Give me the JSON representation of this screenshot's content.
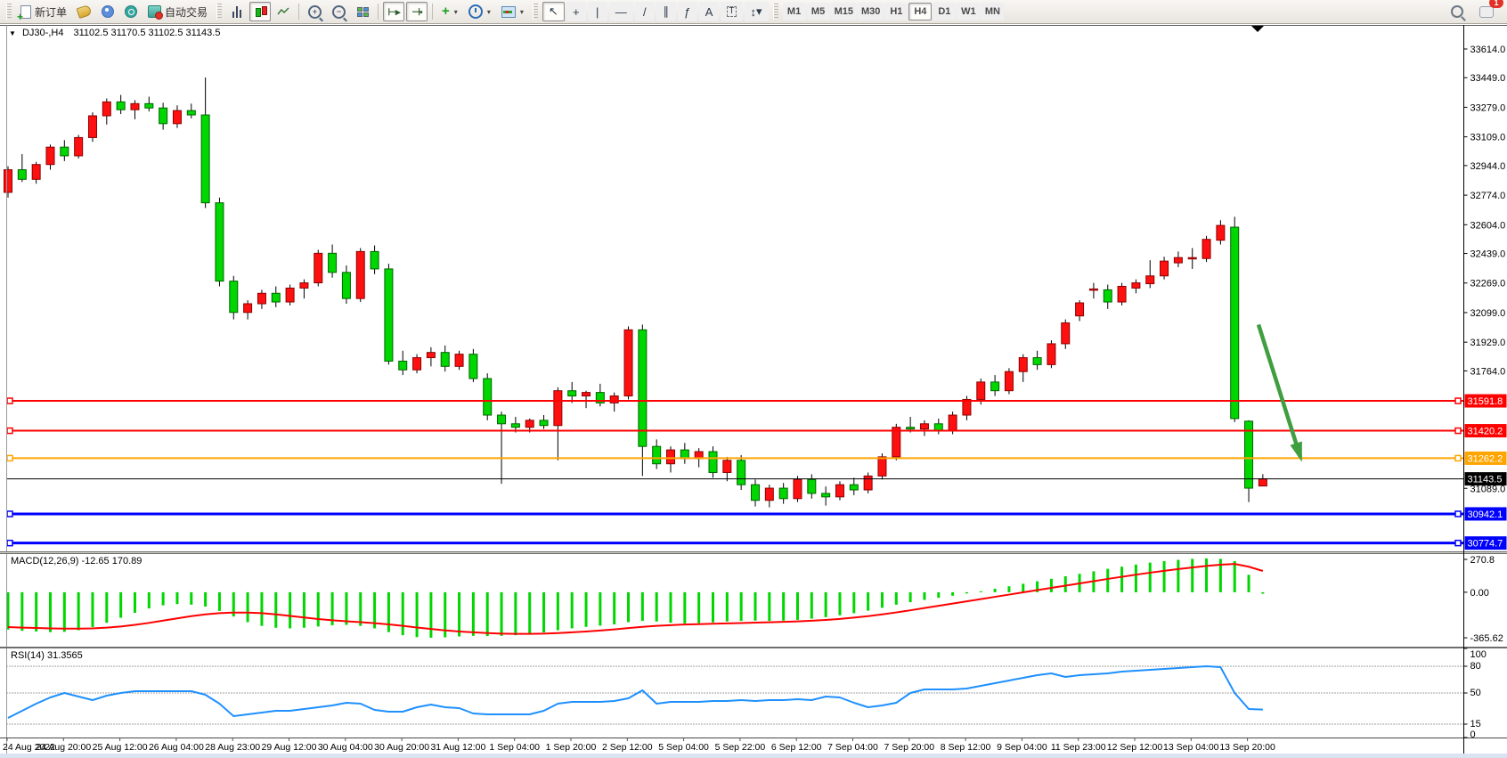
{
  "toolbar": {
    "new_order_label": "新订单",
    "autotrading_label": "自动交易",
    "notification_count": "1",
    "timeframes": [
      "M1",
      "M5",
      "M15",
      "M30",
      "H1",
      "H4",
      "D1",
      "W1",
      "MN"
    ],
    "active_timeframe": "H4",
    "tools": [
      {
        "name": "cursor",
        "active": true
      },
      {
        "name": "crosshair",
        "active": false
      },
      {
        "name": "vertical-line",
        "active": false
      },
      {
        "name": "horizontal-line",
        "active": false
      },
      {
        "name": "trendline",
        "active": false
      },
      {
        "name": "equidistant-channel",
        "active": false
      },
      {
        "name": "fibonacci",
        "active": false
      },
      {
        "name": "text",
        "active": false
      },
      {
        "name": "text-label",
        "active": false
      },
      {
        "name": "arrows",
        "active": false
      }
    ]
  },
  "chart": {
    "title_symbol_period": "DJ30-,H4",
    "title_ohlc": "31102.5 31170.5 31102.5 31143.5"
  },
  "macd_label": "MACD(12,26,9) -12.65 170.89",
  "rsi_label": "RSI(14) 31.3565",
  "chart_data": {
    "type": "candlestick",
    "symbol": "DJ30-",
    "period": "H4",
    "current_price": 31143.5,
    "price_axis_ticks": [
      33614.0,
      33449.0,
      33279.0,
      33109.0,
      32944.0,
      32774.0,
      32604.0,
      32439.0,
      32269.0,
      32099.0,
      31929.0,
      31764.0,
      31089.0
    ],
    "horizontal_lines": [
      {
        "price": 31591.8,
        "label": "31591.8",
        "color": "#ff0000",
        "width": 2,
        "handles": true
      },
      {
        "price": 31420.2,
        "label": "31420.2",
        "color": "#ff0000",
        "width": 2,
        "handles": true
      },
      {
        "price": 31262.2,
        "label": "31262.2",
        "color": "#ffa500",
        "width": 2,
        "handles": true
      },
      {
        "price": 31143.5,
        "label": "31143.5",
        "color": "#000000",
        "width": 1,
        "handles": false
      },
      {
        "price": 30942.1,
        "label": "30942.1",
        "color": "#0000ff",
        "width": 3,
        "handles": true
      },
      {
        "price": 30774.7,
        "label": "30774.7",
        "color": "#0000ff",
        "width": 3,
        "handles": true
      }
    ],
    "time_labels": [
      "24 Aug 2022",
      "24 Aug 20:00",
      "25 Aug 12:00",
      "26 Aug 04:00",
      "28 Aug 23:00",
      "29 Aug 12:00",
      "30 Aug 04:00",
      "30 Aug 20:00",
      "31 Aug 12:00",
      "1 Sep 04:00",
      "1 Sep 20:00",
      "2 Sep 12:00",
      "5 Sep 04:00",
      "5 Sep 22:00",
      "6 Sep 12:00",
      "7 Sep 04:00",
      "7 Sep 20:00",
      "8 Sep 12:00",
      "9 Sep 04:00",
      "11 Sep 23:00",
      "12 Sep 12:00",
      "13 Sep 04:00",
      "13 Sep 20:00"
    ],
    "candles": [
      [
        32790,
        32940,
        32760,
        32920
      ],
      [
        32920,
        33010,
        32850,
        32865
      ],
      [
        32865,
        32965,
        32840,
        32950
      ],
      [
        32950,
        33065,
        32920,
        33050
      ],
      [
        33050,
        33090,
        32970,
        33000
      ],
      [
        33000,
        33120,
        32985,
        33105
      ],
      [
        33105,
        33250,
        33080,
        33230
      ],
      [
        33230,
        33330,
        33180,
        33310
      ],
      [
        33310,
        33350,
        33240,
        33265
      ],
      [
        33265,
        33320,
        33210,
        33300
      ],
      [
        33300,
        33340,
        33255,
        33275
      ],
      [
        33275,
        33305,
        33150,
        33185
      ],
      [
        33185,
        33290,
        33160,
        33260
      ],
      [
        33260,
        33300,
        33215,
        33235
      ],
      [
        33235,
        33450,
        32700,
        32730
      ],
      [
        32730,
        32760,
        32250,
        32280
      ],
      [
        32280,
        32310,
        32060,
        32100
      ],
      [
        32100,
        32170,
        32060,
        32150
      ],
      [
        32150,
        32230,
        32120,
        32210
      ],
      [
        32210,
        32250,
        32130,
        32160
      ],
      [
        32160,
        32260,
        32140,
        32240
      ],
      [
        32240,
        32290,
        32180,
        32270
      ],
      [
        32270,
        32460,
        32250,
        32440
      ],
      [
        32440,
        32490,
        32300,
        32330
      ],
      [
        32330,
        32370,
        32150,
        32180
      ],
      [
        32180,
        32470,
        32160,
        32450
      ],
      [
        32450,
        32485,
        32320,
        32350
      ],
      [
        32350,
        32380,
        31800,
        31820
      ],
      [
        31820,
        31880,
        31740,
        31770
      ],
      [
        31770,
        31860,
        31750,
        31840
      ],
      [
        31840,
        31900,
        31790,
        31870
      ],
      [
        31870,
        31910,
        31760,
        31790
      ],
      [
        31790,
        31880,
        31770,
        31860
      ],
      [
        31860,
        31890,
        31700,
        31720
      ],
      [
        31720,
        31750,
        31480,
        31510
      ],
      [
        31510,
        31530,
        31115,
        31460
      ],
      [
        31460,
        31500,
        31410,
        31440
      ],
      [
        31440,
        31490,
        31410,
        31480
      ],
      [
        31480,
        31510,
        31430,
        31450
      ],
      [
        31450,
        31670,
        31250,
        31650
      ],
      [
        31650,
        31700,
        31580,
        31620
      ],
      [
        31620,
        31650,
        31550,
        31640
      ],
      [
        31640,
        31690,
        31560,
        31580
      ],
      [
        31580,
        31640,
        31530,
        31620
      ],
      [
        31620,
        32020,
        31600,
        32000
      ],
      [
        32000,
        32030,
        31160,
        31330
      ],
      [
        31330,
        31370,
        31200,
        31230
      ],
      [
        31230,
        31330,
        31180,
        31310
      ],
      [
        31310,
        31350,
        31230,
        31260
      ],
      [
        31260,
        31320,
        31210,
        31300
      ],
      [
        31300,
        31330,
        31150,
        31180
      ],
      [
        31180,
        31270,
        31130,
        31250
      ],
      [
        31250,
        31280,
        31080,
        31110
      ],
      [
        31110,
        31140,
        30985,
        31020
      ],
      [
        31020,
        31110,
        30980,
        31090
      ],
      [
        31090,
        31120,
        31000,
        31030
      ],
      [
        31030,
        31160,
        31010,
        31140
      ],
      [
        31140,
        31170,
        31030,
        31060
      ],
      [
        31060,
        31100,
        30990,
        31040
      ],
      [
        31040,
        31130,
        31020,
        31110
      ],
      [
        31110,
        31150,
        31050,
        31080
      ],
      [
        31080,
        31180,
        31060,
        31160
      ],
      [
        31160,
        31290,
        31140,
        31270
      ],
      [
        31270,
        31460,
        31250,
        31440
      ],
      [
        31440,
        31500,
        31410,
        31430
      ],
      [
        31430,
        31480,
        31390,
        31460
      ],
      [
        31460,
        31490,
        31400,
        31420
      ],
      [
        31420,
        31530,
        31400,
        31510
      ],
      [
        31510,
        31620,
        31480,
        31600
      ],
      [
        31600,
        31720,
        31570,
        31700
      ],
      [
        31700,
        31740,
        31620,
        31650
      ],
      [
        31650,
        31780,
        31630,
        31760
      ],
      [
        31760,
        31860,
        31700,
        31840
      ],
      [
        31840,
        31880,
        31770,
        31800
      ],
      [
        31800,
        31940,
        31780,
        31920
      ],
      [
        31920,
        32060,
        31890,
        32040
      ],
      [
        32080,
        32170,
        32050,
        32155
      ],
      [
        32230,
        32270,
        32180,
        32235
      ],
      [
        32230,
        32260,
        32120,
        32160
      ],
      [
        32160,
        32270,
        32140,
        32250
      ],
      [
        32240,
        32290,
        32210,
        32270
      ],
      [
        32265,
        32400,
        32240,
        32310
      ],
      [
        32310,
        32420,
        32290,
        32395
      ],
      [
        32385,
        32450,
        32360,
        32415
      ],
      [
        32410,
        32470,
        32350,
        32415
      ],
      [
        32410,
        32540,
        32390,
        32520
      ],
      [
        32515,
        32630,
        32490,
        32600
      ],
      [
        32590,
        32650,
        31470,
        31490
      ],
      [
        31475,
        31480,
        31010,
        31090
      ],
      [
        31102.5,
        31170.5,
        31102.5,
        31143.5
      ]
    ],
    "macd": {
      "scale_labels": [
        "270.8",
        "0.00",
        "-365.62"
      ],
      "scale_values": [
        270.8,
        0,
        -365.62
      ],
      "histogram": [
        -300,
        -310,
        -315,
        -320,
        -318,
        -305,
        -280,
        -245,
        -205,
        -165,
        -130,
        -105,
        -95,
        -100,
        -115,
        -150,
        -195,
        -240,
        -270,
        -285,
        -290,
        -285,
        -275,
        -265,
        -262,
        -270,
        -290,
        -320,
        -345,
        -360,
        -365,
        -362,
        -355,
        -350,
        -352,
        -350,
        -345,
        -335,
        -322,
        -305,
        -290,
        -278,
        -268,
        -258,
        -240,
        -230,
        -235,
        -245,
        -250,
        -248,
        -242,
        -235,
        -230,
        -228,
        -230,
        -228,
        -222,
        -212,
        -200,
        -185,
        -168,
        -148,
        -125,
        -100,
        -80,
        -62,
        -45,
        -28,
        -10,
        8,
        28,
        48,
        68,
        88,
        108,
        128,
        148,
        168,
        188,
        205,
        222,
        238,
        250,
        260,
        268,
        271,
        268,
        250,
        140,
        -12
      ],
      "signal": [
        -280,
        -284,
        -287,
        -290,
        -292,
        -292,
        -290,
        -284,
        -275,
        -262,
        -246,
        -228,
        -210,
        -192,
        -178,
        -168,
        -163,
        -163,
        -168,
        -178,
        -190,
        -203,
        -215,
        -225,
        -233,
        -240,
        -248,
        -258,
        -270,
        -283,
        -295,
        -306,
        -315,
        -322,
        -328,
        -332,
        -334,
        -334,
        -332,
        -328,
        -322,
        -315,
        -307,
        -298,
        -288,
        -278,
        -270,
        -264,
        -259,
        -256,
        -253,
        -250,
        -247,
        -244,
        -241,
        -238,
        -234,
        -229,
        -222,
        -214,
        -204,
        -192,
        -178,
        -162,
        -145,
        -127,
        -109,
        -91,
        -73,
        -55,
        -37,
        -19,
        -1,
        17,
        35,
        53,
        71,
        89,
        107,
        124,
        141,
        157,
        172,
        186,
        199,
        211,
        221,
        227,
        205,
        170.89
      ]
    },
    "rsi": {
      "levels": [
        "100",
        "80",
        "50",
        "15",
        "0"
      ],
      "level_values": [
        100,
        80,
        50,
        15,
        0
      ],
      "dotted_levels": [
        80,
        50,
        15
      ],
      "current": 31.3565,
      "values": [
        22,
        30,
        38,
        45,
        50,
        46,
        42,
        47,
        50,
        52,
        52,
        52,
        52,
        52,
        48,
        38,
        24,
        26,
        28,
        30,
        30,
        32,
        34,
        36,
        39,
        38,
        31,
        29,
        29,
        34,
        37,
        34,
        33,
        27,
        26,
        26,
        26,
        26,
        30,
        38,
        40,
        40,
        40,
        41,
        44,
        53,
        38,
        40,
        40,
        40,
        41,
        41,
        42,
        41,
        42,
        42,
        43,
        42,
        46,
        45,
        39,
        34,
        36,
        39,
        50,
        54,
        54,
        54,
        55,
        58,
        61,
        64,
        67,
        70,
        72,
        68,
        70,
        71,
        72,
        74,
        75,
        76,
        77,
        78,
        79,
        80,
        79,
        50,
        32,
        31.36
      ]
    },
    "annotation_arrow": {
      "color": "#3f9e3f",
      "from_price": 32030,
      "to_price": 31270
    },
    "colors": {
      "up": "#fe1010",
      "down": "#00d600",
      "wick": "#000000",
      "macd_histogram": "#00d600",
      "macd_signal": "#ff0000",
      "rsi_line": "#1e90ff",
      "background": "#ffffff"
    }
  }
}
